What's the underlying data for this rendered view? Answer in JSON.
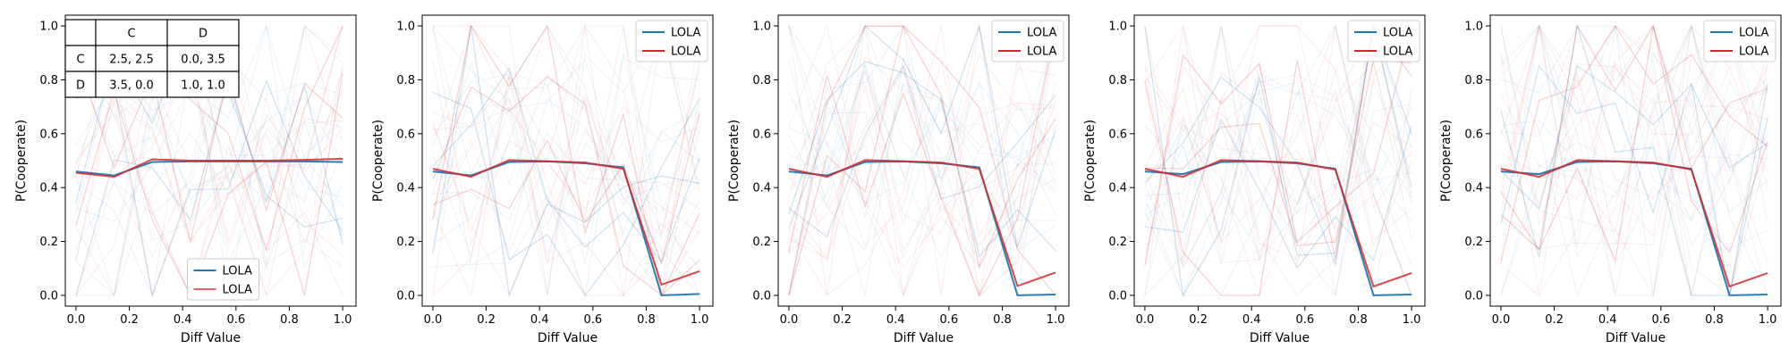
{
  "colors": {
    "blue": "#1f77b4",
    "red": "#d62728"
  },
  "payoff_table": {
    "headers": [
      "",
      "C",
      "D"
    ],
    "rows": [
      [
        "C",
        "2.5, 2.5",
        "0.0, 3.5"
      ],
      [
        "D",
        "3.5, 0.0",
        "1.0, 1.0"
      ]
    ]
  },
  "chart_data": [
    {
      "type": "line",
      "xlabel": "Diff Value",
      "ylabel": "P(Cooperate)",
      "xlim": [
        -0.04,
        1.05
      ],
      "ylim": [
        -0.04,
        1.04
      ],
      "xticks": [
        "0.0",
        "0.2",
        "0.4",
        "0.6",
        "0.8",
        "1.0"
      ],
      "yticks": [
        "0.0",
        "0.2",
        "0.4",
        "0.6",
        "0.8",
        "1.0"
      ],
      "legend_position": "lower-center",
      "grid": false,
      "x": [
        0.0,
        0.143,
        0.286,
        0.429,
        0.571,
        0.714,
        0.857,
        1.0
      ],
      "series": [
        {
          "name": "LOLA",
          "color": "#1f77b4",
          "values": [
            0.46,
            0.445,
            0.495,
            0.497,
            0.497,
            0.497,
            0.497,
            0.495
          ]
        },
        {
          "name": "LOLA",
          "color": "#d62728",
          "values": [
            0.455,
            0.44,
            0.505,
            0.5,
            0.5,
            0.5,
            0.503,
            0.507
          ]
        }
      ]
    },
    {
      "type": "line",
      "xlabel": "Diff Value",
      "ylabel": "P(Cooperate)",
      "xlim": [
        -0.04,
        1.05
      ],
      "ylim": [
        -0.04,
        1.04
      ],
      "xticks": [
        "0.0",
        "0.2",
        "0.4",
        "0.6",
        "0.8",
        "1.0"
      ],
      "yticks": [
        "0.0",
        "0.2",
        "0.4",
        "0.6",
        "0.8",
        "1.0"
      ],
      "legend_position": "upper-right",
      "grid": false,
      "x": [
        0.0,
        0.143,
        0.286,
        0.429,
        0.571,
        0.714,
        0.857,
        1.0
      ],
      "series": [
        {
          "name": "LOLA",
          "color": "#1f77b4",
          "values": [
            0.46,
            0.445,
            0.495,
            0.497,
            0.49,
            0.475,
            0.0,
            0.005
          ]
        },
        {
          "name": "LOLA",
          "color": "#d62728",
          "values": [
            0.47,
            0.44,
            0.502,
            0.498,
            0.493,
            0.47,
            0.04,
            0.09
          ]
        }
      ]
    },
    {
      "type": "line",
      "xlabel": "Diff Value",
      "ylabel": "P(Cooperate)",
      "xlim": [
        -0.04,
        1.05
      ],
      "ylim": [
        -0.04,
        1.04
      ],
      "xticks": [
        "0.0",
        "0.2",
        "0.4",
        "0.6",
        "0.8",
        "1.0"
      ],
      "yticks": [
        "0.0",
        "0.2",
        "0.4",
        "0.6",
        "0.8",
        "1.0"
      ],
      "legend_position": "upper-right",
      "grid": false,
      "x": [
        0.0,
        0.143,
        0.286,
        0.429,
        0.571,
        0.714,
        0.857,
        1.0
      ],
      "series": [
        {
          "name": "LOLA",
          "color": "#1f77b4",
          "values": [
            0.46,
            0.445,
            0.495,
            0.497,
            0.49,
            0.475,
            0.0,
            0.003
          ]
        },
        {
          "name": "LOLA",
          "color": "#d62728",
          "values": [
            0.47,
            0.44,
            0.502,
            0.498,
            0.493,
            0.47,
            0.035,
            0.085
          ]
        }
      ]
    },
    {
      "type": "line",
      "xlabel": "Diff Value",
      "ylabel": "P(Cooperate)",
      "xlim": [
        -0.04,
        1.05
      ],
      "ylim": [
        -0.04,
        1.04
      ],
      "xticks": [
        "0.0",
        "0.2",
        "0.4",
        "0.6",
        "0.8",
        "1.0"
      ],
      "yticks": [
        "0.0",
        "0.2",
        "0.4",
        "0.6",
        "0.8",
        "1.0"
      ],
      "legend_position": "upper-right",
      "grid": false,
      "x": [
        0.0,
        0.143,
        0.286,
        0.429,
        0.571,
        0.714,
        0.857,
        1.0
      ],
      "series": [
        {
          "name": "LOLA",
          "color": "#1f77b4",
          "values": [
            0.46,
            0.45,
            0.495,
            0.497,
            0.49,
            0.47,
            0.0,
            0.003
          ]
        },
        {
          "name": "LOLA",
          "color": "#d62728",
          "values": [
            0.47,
            0.44,
            0.502,
            0.498,
            0.493,
            0.467,
            0.033,
            0.083
          ]
        }
      ]
    },
    {
      "type": "line",
      "xlabel": "Diff Value",
      "ylabel": "P(Cooperate)",
      "xlim": [
        -0.04,
        1.05
      ],
      "ylim": [
        -0.04,
        1.04
      ],
      "xticks": [
        "0.0",
        "0.2",
        "0.4",
        "0.6",
        "0.8",
        "1.0"
      ],
      "yticks": [
        "0.0",
        "0.2",
        "0.4",
        "0.6",
        "0.8",
        "1.0"
      ],
      "legend_position": "upper-right",
      "grid": false,
      "x": [
        0.0,
        0.143,
        0.286,
        0.429,
        0.571,
        0.714,
        0.857,
        1.0
      ],
      "series": [
        {
          "name": "LOLA",
          "color": "#1f77b4",
          "values": [
            0.46,
            0.45,
            0.495,
            0.497,
            0.49,
            0.47,
            0.0,
            0.003
          ]
        },
        {
          "name": "LOLA",
          "color": "#d62728",
          "values": [
            0.47,
            0.44,
            0.502,
            0.498,
            0.493,
            0.467,
            0.033,
            0.083
          ]
        }
      ]
    }
  ]
}
